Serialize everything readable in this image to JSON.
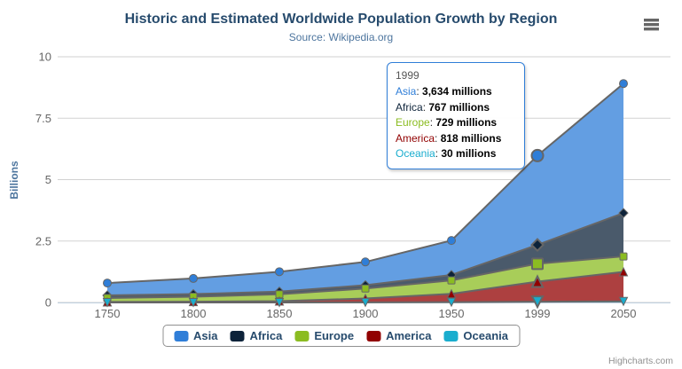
{
  "header": {
    "title": "Historic and Estimated Worldwide Population Growth by Region",
    "subtitle": "Source: Wikipedia.org"
  },
  "credits": "Highcharts.com",
  "chart_data": {
    "type": "area",
    "stacking": "normal",
    "title": "Historic and Estimated Worldwide Population Growth by Region",
    "subtitle": "Source: Wikipedia.org",
    "categories": [
      "1750",
      "1800",
      "1850",
      "1900",
      "1950",
      "1999",
      "2050"
    ],
    "xlabel": "",
    "ylabel": "Billions",
    "ylim": [
      0,
      10
    ],
    "yticks": [
      0,
      2.5,
      5,
      7.5,
      10
    ],
    "grid": true,
    "legend_position": "bottom",
    "units": "millions",
    "series": [
      {
        "name": "Asia",
        "color": "#2f7ed8",
        "marker": "circle",
        "values": [
          502,
          635,
          809,
          947,
          1402,
          3634,
          5268
        ]
      },
      {
        "name": "Africa",
        "color": "#0d233a",
        "marker": "diamond",
        "values": [
          106,
          107,
          111,
          133,
          221,
          767,
          1766
        ]
      },
      {
        "name": "Europe",
        "color": "#8bbc21",
        "marker": "square",
        "values": [
          163,
          203,
          276,
          408,
          547,
          729,
          628
        ]
      },
      {
        "name": "America",
        "color": "#910000",
        "marker": "triangle",
        "values": [
          18,
          31,
          54,
          156,
          339,
          818,
          1201
        ]
      },
      {
        "name": "Oceania",
        "color": "#1aadce",
        "marker": "triangle-down",
        "values": [
          2,
          2,
          2,
          6,
          13,
          30,
          46
        ]
      }
    ],
    "stack_order_bottom_to_top": [
      "Oceania",
      "America",
      "Europe",
      "Africa",
      "Asia"
    ],
    "line_color": "#666666",
    "fill_opacity": 0.75,
    "hover_index": 5,
    "tooltip": {
      "header": "1999",
      "border_color": "#2f7ed8",
      "rows": [
        {
          "name": "Asia",
          "value": "3,634 millions"
        },
        {
          "name": "Africa",
          "value": "767 millions"
        },
        {
          "name": "Europe",
          "value": "729 millions"
        },
        {
          "name": "America",
          "value": "818 millions"
        },
        {
          "name": "Oceania",
          "value": "30 millions"
        }
      ]
    }
  }
}
